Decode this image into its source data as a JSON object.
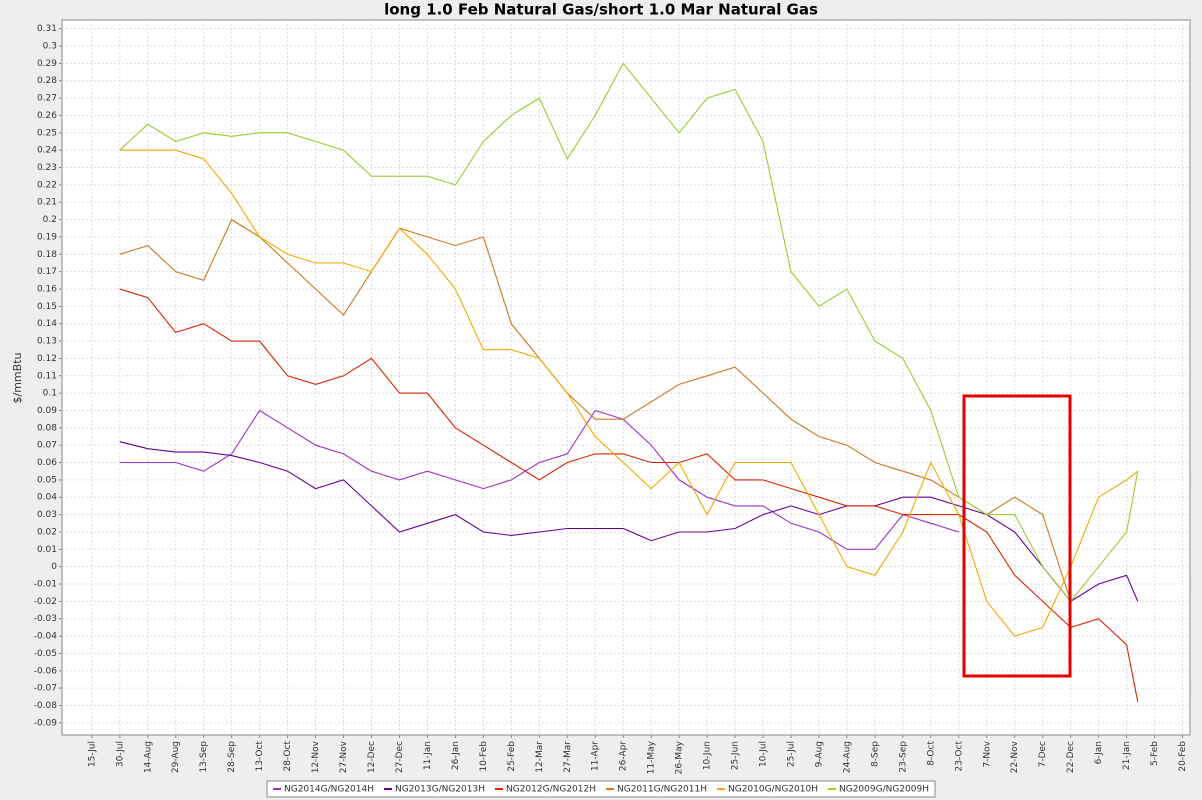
{
  "chart_data": {
    "type": "line",
    "title": "long 1.0 Feb Natural Gas/short 1.0 Mar Natural Gas",
    "y_label": "$/mmBtu",
    "x": [
      15,
      30,
      45,
      60,
      75,
      90,
      105,
      120,
      135,
      150,
      165,
      180,
      195,
      210,
      225,
      240,
      255,
      270,
      285,
      300,
      315,
      330,
      345,
      360,
      375,
      390,
      405,
      420,
      435,
      450,
      465,
      480,
      495,
      510,
      525,
      540,
      555,
      561
    ],
    "xlim": [
      -16,
      589
    ],
    "xticks": [
      {
        "value": 0,
        "label": "15-Jul"
      },
      {
        "value": 15,
        "label": "30-Jul"
      },
      {
        "value": 30,
        "label": "14-Aug"
      },
      {
        "value": 45,
        "label": "29-Aug"
      },
      {
        "value": 60,
        "label": "13-Sep"
      },
      {
        "value": 75,
        "label": "28-Sep"
      },
      {
        "value": 90,
        "label": "13-Oct"
      },
      {
        "value": 105,
        "label": "28-Oct"
      },
      {
        "value": 120,
        "label": "12-Nov"
      },
      {
        "value": 135,
        "label": "27-Nov"
      },
      {
        "value": 150,
        "label": "12-Dec"
      },
      {
        "value": 165,
        "label": "27-Dec"
      },
      {
        "value": 180,
        "label": "11-Jan"
      },
      {
        "value": 195,
        "label": "26-Jan"
      },
      {
        "value": 210,
        "label": "10-Feb"
      },
      {
        "value": 225,
        "label": "25-Feb"
      },
      {
        "value": 240,
        "label": "12-Mar"
      },
      {
        "value": 255,
        "label": "27-Mar"
      },
      {
        "value": 270,
        "label": "11-Apr"
      },
      {
        "value": 285,
        "label": "26-Apr"
      },
      {
        "value": 300,
        "label": "11-May"
      },
      {
        "value": 315,
        "label": "26-May"
      },
      {
        "value": 330,
        "label": "10-Jun"
      },
      {
        "value": 345,
        "label": "25-Jun"
      },
      {
        "value": 360,
        "label": "10-Jul"
      },
      {
        "value": 375,
        "label": "25-Jul"
      },
      {
        "value": 390,
        "label": "9-Aug"
      },
      {
        "value": 405,
        "label": "24-Aug"
      },
      {
        "value": 420,
        "label": "8-Sep"
      },
      {
        "value": 435,
        "label": "23-Sep"
      },
      {
        "value": 450,
        "label": "8-Oct"
      },
      {
        "value": 465,
        "label": "23-Oct"
      },
      {
        "value": 480,
        "label": "7-Nov"
      },
      {
        "value": 495,
        "label": "22-Nov"
      },
      {
        "value": 510,
        "label": "7-Dec"
      },
      {
        "value": 525,
        "label": "22-Dec"
      },
      {
        "value": 540,
        "label": "6-Jan"
      },
      {
        "value": 555,
        "label": "21-Jan"
      },
      {
        "value": 570,
        "label": "5-Feb"
      },
      {
        "value": 585,
        "label": "20-Feb"
      }
    ],
    "ylim": [
      -0.097,
      0.315
    ],
    "yticks": [
      -0.09,
      -0.08,
      -0.07,
      -0.06,
      -0.05,
      -0.04,
      -0.03,
      -0.02,
      -0.01,
      0,
      0.01,
      0.02,
      0.03,
      0.04,
      0.05,
      0.06,
      0.07,
      0.08,
      0.09,
      0.1,
      0.11,
      0.12,
      0.13,
      0.14,
      0.15,
      0.16,
      0.17,
      0.18,
      0.19,
      0.2,
      0.21,
      0.22,
      0.23,
      0.24,
      0.25,
      0.26,
      0.27,
      0.28,
      0.29,
      0.3,
      0.31
    ],
    "grid": true,
    "legend": "bottom",
    "series": [
      {
        "name": "NG2014G/NG2014H",
        "color": "#9933cc",
        "values": [
          0.06,
          0.06,
          0.06,
          0.055,
          0.065,
          0.09,
          0.08,
          0.07,
          0.065,
          0.055,
          0.05,
          0.055,
          0.05,
          0.045,
          0.05,
          0.06,
          0.065,
          0.09,
          0.085,
          0.07,
          0.05,
          0.04,
          0.035,
          0.035,
          0.025,
          0.02,
          0.01,
          0.01,
          0.03,
          0.025,
          0.02,
          null,
          null,
          null,
          null,
          null,
          null,
          null
        ]
      },
      {
        "name": "NG2013G/NG2013H",
        "color": "#660099",
        "values": [
          0.072,
          0.068,
          0.066,
          0.066,
          0.064,
          0.06,
          0.055,
          0.045,
          0.05,
          0.035,
          0.02,
          0.025,
          0.03,
          0.02,
          0.018,
          0.02,
          0.022,
          0.022,
          0.022,
          0.015,
          0.02,
          0.02,
          0.022,
          0.03,
          0.035,
          0.03,
          0.035,
          0.035,
          0.04,
          0.04,
          0.035,
          0.03,
          0.02,
          0.0,
          -0.02,
          -0.01,
          -0.005,
          -0.02
        ]
      },
      {
        "name": "NG2012G/NG2012H",
        "color": "#dd2200",
        "values": [
          0.16,
          0.155,
          0.135,
          0.14,
          0.13,
          0.13,
          0.11,
          0.105,
          0.11,
          0.12,
          0.1,
          0.1,
          0.08,
          0.07,
          0.06,
          0.05,
          0.06,
          0.065,
          0.065,
          0.06,
          0.06,
          0.065,
          0.05,
          0.05,
          0.045,
          0.04,
          0.035,
          0.035,
          0.03,
          0.03,
          0.03,
          0.02,
          -0.005,
          -0.02,
          -0.035,
          -0.03,
          -0.045,
          -0.078
        ]
      },
      {
        "name": "NG2011G/NG2011H",
        "color": "#cc7722",
        "values": [
          0.18,
          0.185,
          0.17,
          0.165,
          0.2,
          0.19,
          0.175,
          0.16,
          0.145,
          0.17,
          0.195,
          0.19,
          0.185,
          0.19,
          0.14,
          0.12,
          0.1,
          0.085,
          0.085,
          0.095,
          0.105,
          0.11,
          0.115,
          0.1,
          0.085,
          0.075,
          0.07,
          0.06,
          0.055,
          0.05,
          0.04,
          0.03,
          0.04,
          0.03,
          -0.02,
          null,
          null,
          null
        ]
      },
      {
        "name": "NG2010G/NG2010H",
        "color": "#f2a900",
        "values": [
          0.24,
          0.24,
          0.24,
          0.235,
          0.215,
          0.19,
          0.18,
          0.175,
          0.175,
          0.17,
          0.195,
          0.18,
          0.16,
          0.125,
          0.125,
          0.12,
          0.1,
          0.075,
          0.06,
          0.045,
          0.06,
          0.03,
          0.06,
          0.06,
          0.06,
          0.03,
          0.0,
          -0.005,
          0.02,
          0.06,
          0.03,
          -0.02,
          -0.04,
          -0.035,
          0.0,
          0.04,
          0.05,
          0.055
        ]
      },
      {
        "name": "NG2009G/NG2009H",
        "color": "#99cc33",
        "values": [
          0.24,
          0.255,
          0.245,
          0.25,
          0.248,
          0.25,
          0.25,
          0.245,
          0.24,
          0.225,
          0.225,
          0.225,
          0.22,
          0.245,
          0.26,
          0.27,
          0.235,
          0.26,
          0.29,
          0.27,
          0.25,
          0.27,
          0.275,
          0.245,
          0.17,
          0.15,
          0.16,
          0.13,
          0.12,
          0.09,
          0.04,
          0.03,
          0.03,
          0.0,
          -0.02,
          0.0,
          0.02,
          0.055
        ]
      }
    ]
  }
}
